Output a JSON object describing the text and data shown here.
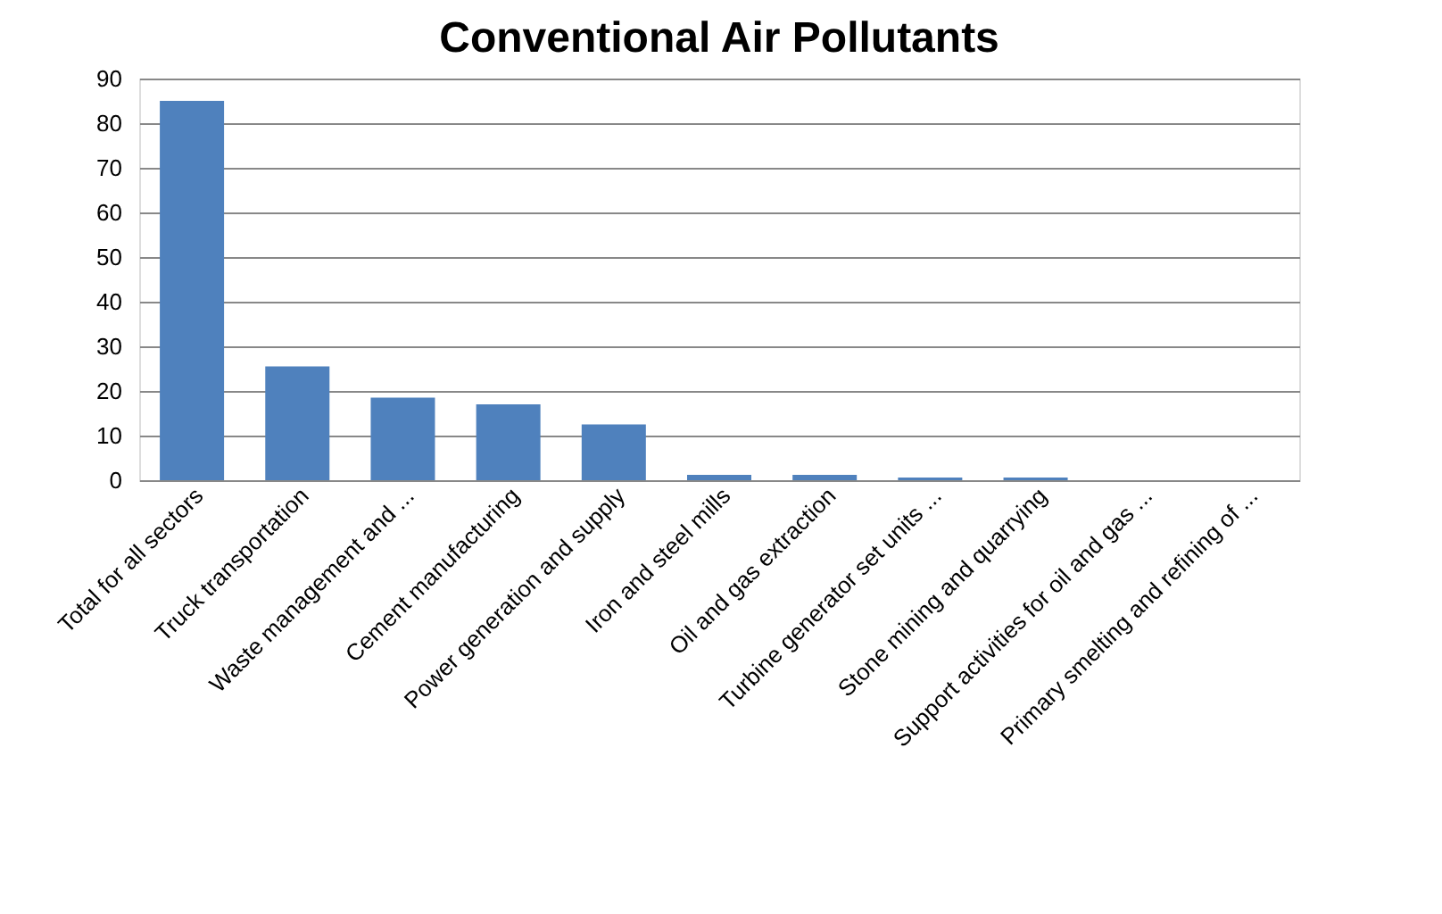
{
  "chart_data": {
    "type": "bar",
    "title": "Conventional Air Pollutants",
    "categories": [
      "Total for all sectors",
      "Truck transportation",
      "Waste management  and ...",
      "Cement manufacturing",
      "Power generation and supply",
      "Iron and steel mills",
      "Oil and gas extraction",
      "Turbine generator set units ...",
      "Stone mining and quarrying",
      "Support activities for oil and gas ...",
      "Primary smelting  and refining of ..."
    ],
    "values": [
      85,
      25.5,
      18.5,
      17,
      12.5,
      1.2,
      1.2,
      0.6,
      0.6,
      0,
      0
    ],
    "color": "#4f81bd",
    "ylim": [
      0,
      90
    ],
    "yticks": [
      0,
      10,
      20,
      30,
      40,
      50,
      60,
      70,
      80,
      90
    ],
    "grid": "y"
  }
}
